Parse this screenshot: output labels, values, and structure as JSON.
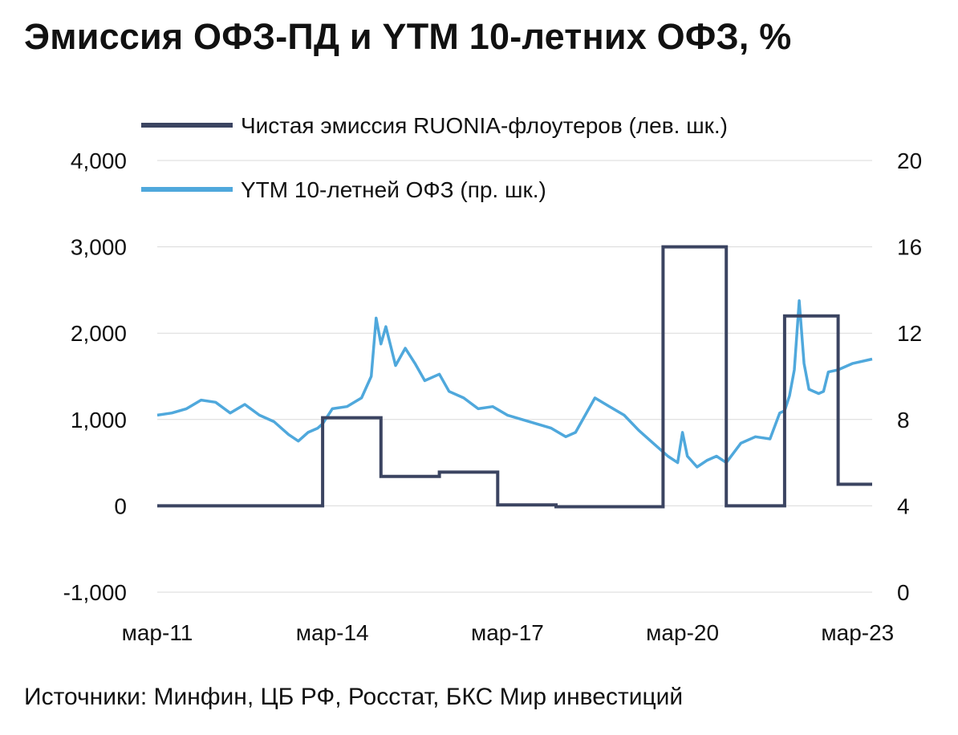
{
  "title": "Эмиссия ОФЗ-ПД и YTM 10-летних ОФЗ, %",
  "source": "Источники: Минфин, ЦБ РФ, Росстат, БКС Мир инвестиций",
  "chart_data": {
    "type": "line",
    "x_range": [
      "2011-03",
      "2023-06"
    ],
    "x_ticks": [
      "мар-11",
      "мар-14",
      "мар-17",
      "мар-20",
      "мар-23"
    ],
    "left_axis": {
      "ticks": [
        "-1,000",
        "0",
        "1,000",
        "2,000",
        "3,000",
        "4,000"
      ],
      "ylim": [
        -1000,
        4000
      ]
    },
    "right_axis": {
      "ticks": [
        "0",
        "4",
        "8",
        "12",
        "16",
        "20"
      ],
      "ylim": [
        0,
        20
      ]
    },
    "grid": "horizontal",
    "legend_position": "top",
    "series": [
      {
        "name": "Чистая эмиссия RUONIA-флоутеров (лев. шк.)",
        "axis": "left",
        "color": "#3b4461",
        "style": "step",
        "points": [
          [
            "2011-03",
            0
          ],
          [
            "2014-01",
            0
          ],
          [
            "2014-01",
            1020
          ],
          [
            "2015-01",
            1020
          ],
          [
            "2015-01",
            340
          ],
          [
            "2016-01",
            340
          ],
          [
            "2016-01",
            390
          ],
          [
            "2017-01",
            390
          ],
          [
            "2017-01",
            10
          ],
          [
            "2018-01",
            10
          ],
          [
            "2018-01",
            -10
          ],
          [
            "2019-11",
            -10
          ],
          [
            "2019-11",
            3000
          ],
          [
            "2020-12",
            3000
          ],
          [
            "2020-12",
            0
          ],
          [
            "2021-12",
            0
          ],
          [
            "2021-12",
            2200
          ],
          [
            "2022-11",
            2200
          ],
          [
            "2022-11",
            250
          ],
          [
            "2023-06",
            250
          ]
        ]
      },
      {
        "name": "YTM 10-летней ОФЗ (пр. шк.)",
        "axis": "right",
        "color": "#4fa8dc",
        "style": "line",
        "points": [
          [
            "2011-03",
            8.2
          ],
          [
            "2011-06",
            8.3
          ],
          [
            "2011-09",
            8.5
          ],
          [
            "2011-12",
            8.9
          ],
          [
            "2012-03",
            8.8
          ],
          [
            "2012-06",
            8.3
          ],
          [
            "2012-09",
            8.7
          ],
          [
            "2012-12",
            8.2
          ],
          [
            "2013-03",
            7.9
          ],
          [
            "2013-06",
            7.3
          ],
          [
            "2013-08",
            7.0
          ],
          [
            "2013-10",
            7.4
          ],
          [
            "2013-12",
            7.6
          ],
          [
            "2014-01",
            7.8
          ],
          [
            "2014-03",
            8.5
          ],
          [
            "2014-06",
            8.6
          ],
          [
            "2014-09",
            9.0
          ],
          [
            "2014-11",
            10.0
          ],
          [
            "2014-12",
            12.7
          ],
          [
            "2015-01",
            11.5
          ],
          [
            "2015-02",
            12.3
          ],
          [
            "2015-04",
            10.5
          ],
          [
            "2015-06",
            11.3
          ],
          [
            "2015-08",
            10.6
          ],
          [
            "2015-10",
            9.8
          ],
          [
            "2016-01",
            10.1
          ],
          [
            "2016-03",
            9.3
          ],
          [
            "2016-06",
            9.0
          ],
          [
            "2016-09",
            8.5
          ],
          [
            "2016-12",
            8.6
          ],
          [
            "2017-03",
            8.2
          ],
          [
            "2017-06",
            8.0
          ],
          [
            "2017-09",
            7.8
          ],
          [
            "2017-12",
            7.6
          ],
          [
            "2018-03",
            7.2
          ],
          [
            "2018-05",
            7.4
          ],
          [
            "2018-07",
            8.2
          ],
          [
            "2018-09",
            9.0
          ],
          [
            "2018-12",
            8.6
          ],
          [
            "2019-03",
            8.2
          ],
          [
            "2019-06",
            7.5
          ],
          [
            "2019-09",
            6.9
          ],
          [
            "2019-12",
            6.3
          ],
          [
            "2020-02",
            6.0
          ],
          [
            "2020-03",
            7.4
          ],
          [
            "2020-04",
            6.3
          ],
          [
            "2020-06",
            5.8
          ],
          [
            "2020-08",
            6.1
          ],
          [
            "2020-10",
            6.3
          ],
          [
            "2020-12",
            6.0
          ],
          [
            "2021-03",
            6.9
          ],
          [
            "2021-06",
            7.2
          ],
          [
            "2021-09",
            7.1
          ],
          [
            "2021-11",
            8.3
          ],
          [
            "2021-12",
            8.4
          ],
          [
            "2022-01",
            9.1
          ],
          [
            "2022-02",
            10.3
          ],
          [
            "2022-03",
            13.5
          ],
          [
            "2022-04",
            10.6
          ],
          [
            "2022-05",
            9.4
          ],
          [
            "2022-07",
            9.2
          ],
          [
            "2022-08",
            9.3
          ],
          [
            "2022-09",
            10.2
          ],
          [
            "2022-11",
            10.3
          ],
          [
            "2023-02",
            10.6
          ],
          [
            "2023-06",
            10.8
          ]
        ]
      }
    ]
  }
}
